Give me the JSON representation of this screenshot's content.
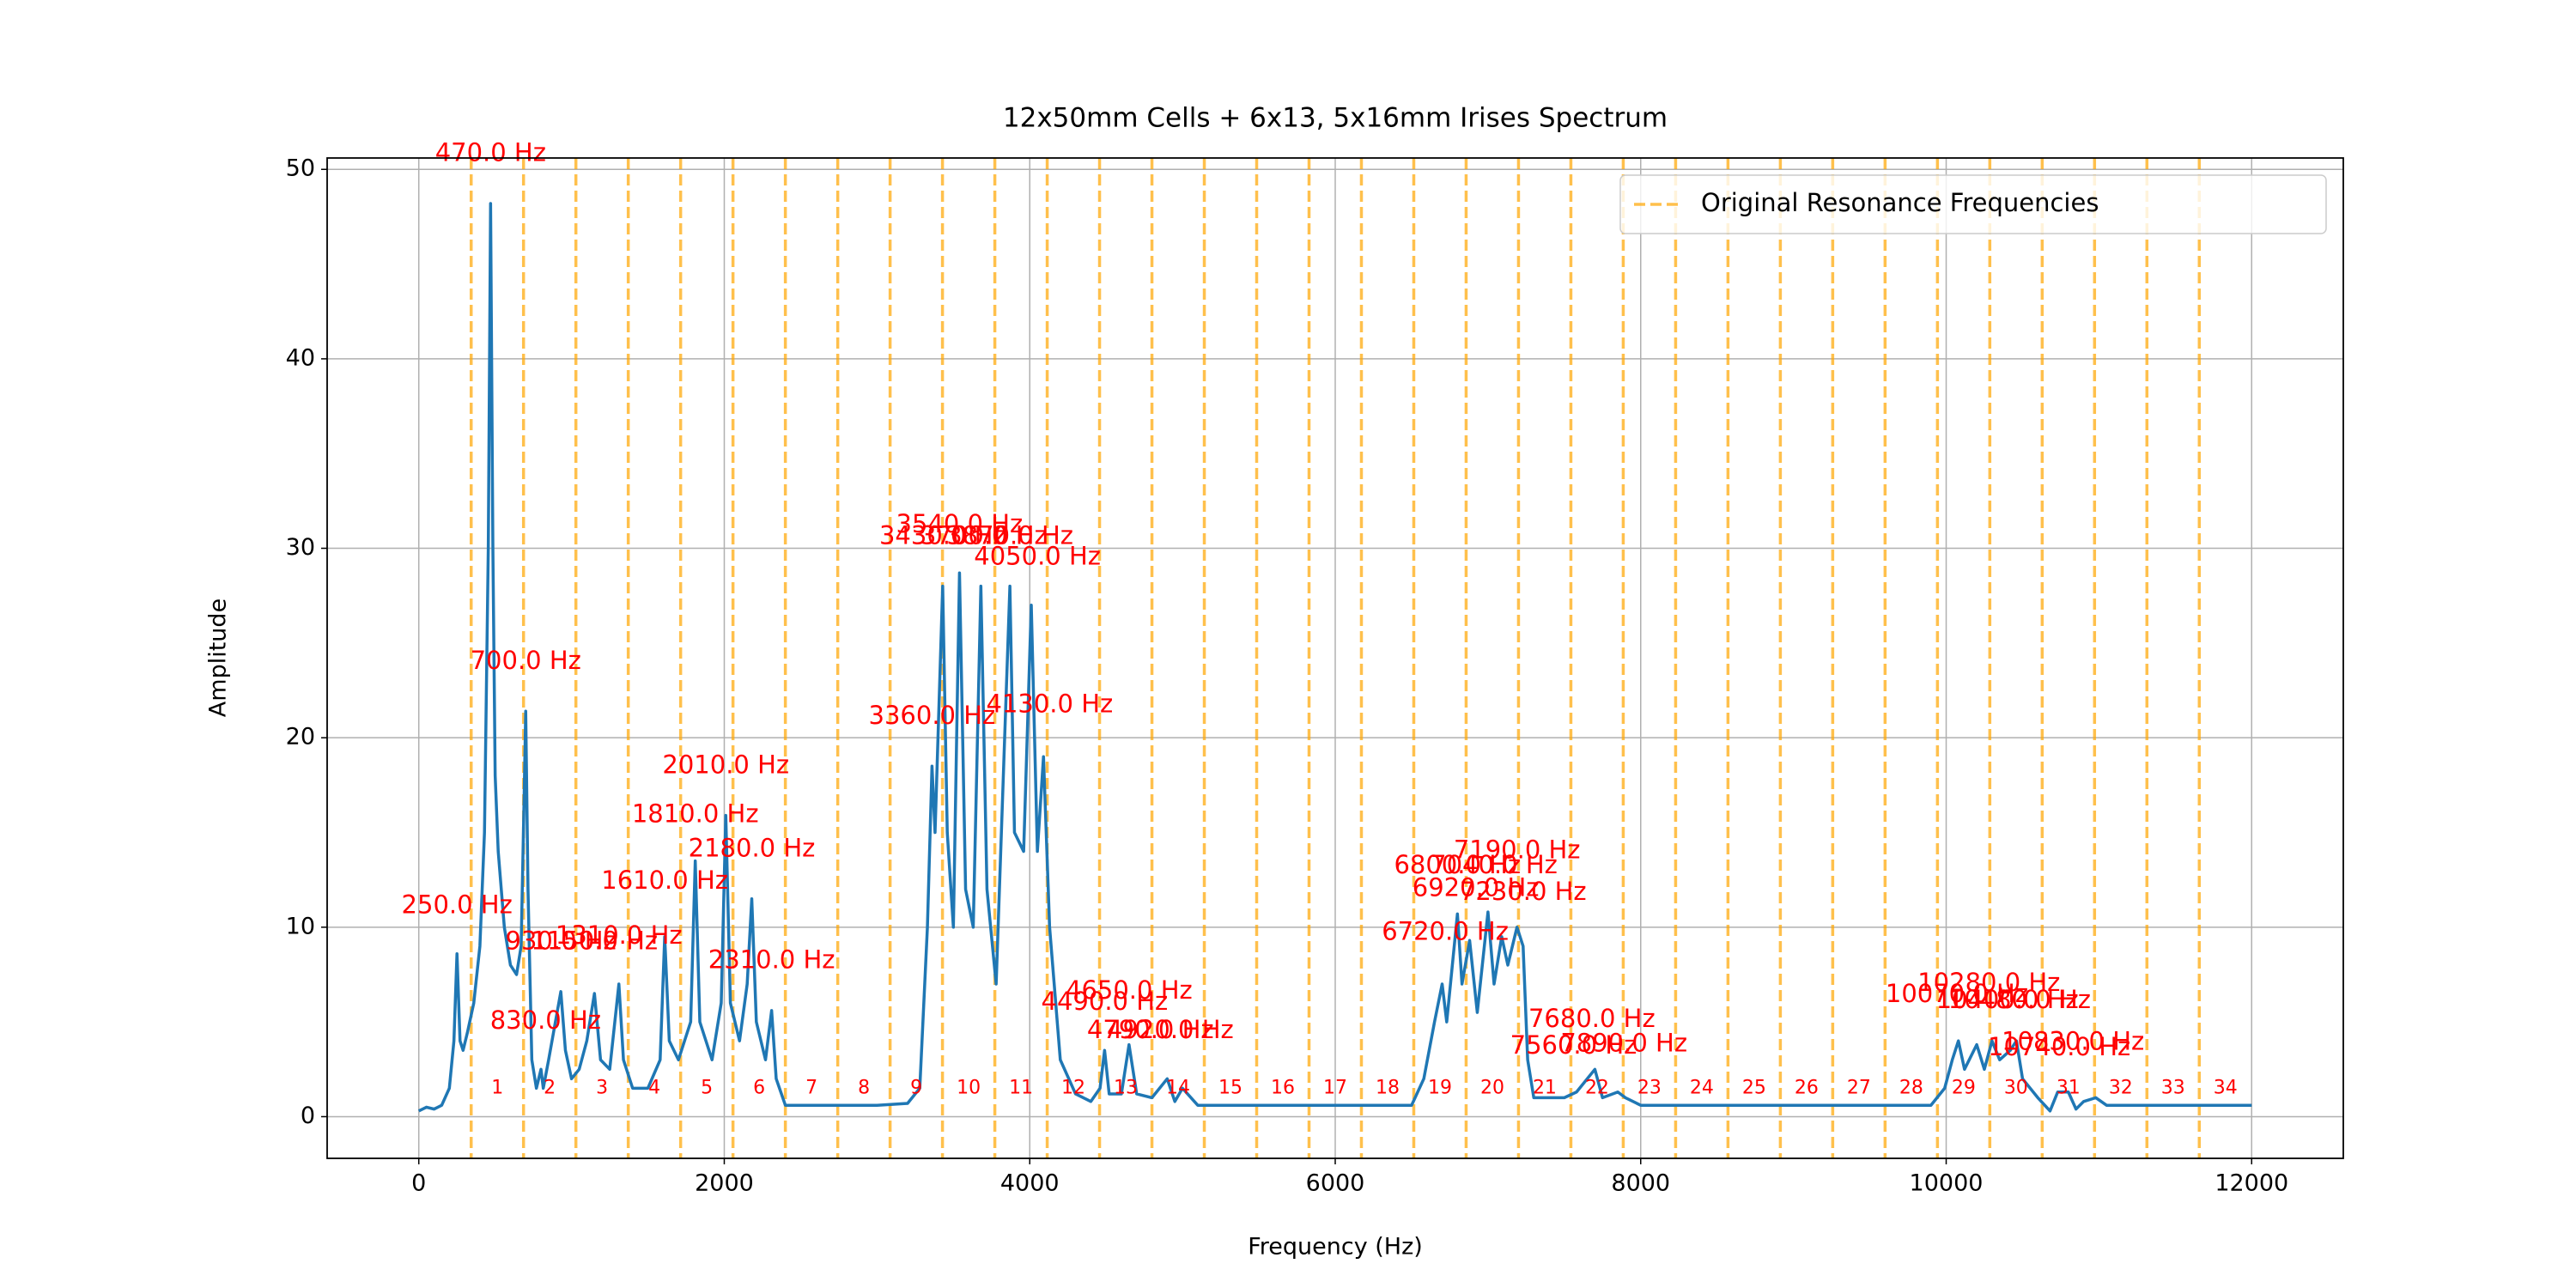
{
  "chart_data": {
    "type": "line",
    "title": "12x50mm Cells + 6x13, 5x16mm Irises Spectrum",
    "x_label": "Frequency (Hz)",
    "y_label": "Amplitude",
    "xlim": [
      -600,
      12600
    ],
    "ylim": [
      -2.2,
      50.6
    ],
    "xticks": [
      0,
      2000,
      4000,
      6000,
      8000,
      10000,
      12000
    ],
    "yticks": [
      0,
      10,
      20,
      30,
      40,
      50
    ],
    "grid": true,
    "legend": "upper right",
    "color": "#1f77b4",
    "x": [
      0,
      50,
      100,
      150,
      200,
      230,
      250,
      270,
      290,
      320,
      360,
      400,
      430,
      455,
      470,
      485,
      500,
      520,
      560,
      600,
      640,
      670,
      690,
      700,
      715,
      740,
      770,
      800,
      815,
      850,
      930,
      960,
      1000,
      1050,
      1100,
      1150,
      1190,
      1250,
      1310,
      1340,
      1400,
      1500,
      1580,
      1610,
      1640,
      1700,
      1780,
      1810,
      1840,
      1920,
      1980,
      2010,
      2040,
      2100,
      2150,
      2180,
      2210,
      2270,
      2310,
      2340,
      2400,
      3000,
      3200,
      3280,
      3330,
      3360,
      3380,
      3430,
      3460,
      3500,
      3540,
      3580,
      3630,
      3680,
      3720,
      3780,
      3870,
      3900,
      3960,
      4010,
      4050,
      4090,
      4130,
      4200,
      4300,
      4400,
      4460,
      4490,
      4520,
      4600,
      4650,
      4700,
      4800,
      4900,
      4950,
      5000,
      5100,
      6500,
      6580,
      6650,
      6700,
      6730,
      6800,
      6830,
      6880,
      6930,
      7000,
      7040,
      7090,
      7130,
      7190,
      7230,
      7260,
      7300,
      7500,
      7580,
      7700,
      7750,
      7850,
      7900,
      8000,
      9900,
      9990,
      10040,
      10080,
      10120,
      10200,
      10250,
      10300,
      10350,
      10420,
      10460,
      10500,
      10600,
      10680,
      10730,
      10800,
      10850,
      10900,
      10980,
      11050,
      12000
    ],
    "values": [
      0.3,
      0.5,
      0.4,
      0.6,
      1.5,
      4,
      8.6,
      4,
      3.5,
      4.5,
      6,
      9,
      15,
      30,
      48.2,
      30,
      18,
      14,
      10,
      8,
      7.5,
      9,
      17,
      21.4,
      12,
      3,
      1.5,
      2.5,
      1.5,
      3,
      6.6,
      3.5,
      2,
      2.5,
      4,
      6.5,
      3,
      2.5,
      7,
      3,
      1.5,
      1.5,
      3,
      9.5,
      4,
      3,
      5,
      13.5,
      5,
      3,
      6,
      15.9,
      6,
      4,
      7,
      11.5,
      5,
      3,
      5.6,
      2,
      0.6,
      0.6,
      0.7,
      1.5,
      10,
      18.5,
      15,
      28,
      15,
      10,
      28.7,
      12,
      10,
      28,
      12,
      7,
      28,
      15,
      14,
      27,
      14,
      19,
      10,
      3,
      1.2,
      0.8,
      1.5,
      3.5,
      1.2,
      1.2,
      3.8,
      1.2,
      1,
      2,
      0.8,
      1.5,
      0.6,
      0.6,
      2,
      5,
      7,
      5,
      10.7,
      7,
      9.3,
      5.5,
      10.8,
      7,
      9.5,
      8,
      10,
      9,
      3,
      1,
      1,
      1.3,
      2.5,
      1,
      1.3,
      1,
      0.6,
      0.6,
      1.5,
      3,
      4,
      2.5,
      3.8,
      2.5,
      4,
      3,
      3.5,
      4,
      2,
      1,
      0.3,
      1.3,
      1.3,
      0.4,
      0.8,
      1,
      0.6,
      0.6
    ],
    "resonance_lines": {
      "name": "Original Resonance Frequencies",
      "color": "#ffa500",
      "values": [
        342.9,
        685.7,
        1028.6,
        1371.4,
        1714.3,
        2057.1,
        2400,
        2742.9,
        3085.7,
        3428.6,
        3771.4,
        4114.3,
        4457.1,
        4800,
        5142.9,
        5485.7,
        5828.6,
        6171.4,
        6514.3,
        6857.1,
        7200,
        7542.9,
        7885.7,
        8228.6,
        8571.4,
        8914.3,
        9257.1,
        9600,
        9942.9,
        10285.7,
        10628.6,
        10971.4,
        11314.3,
        11657.1
      ]
    },
    "annotations": [
      {
        "x": 250,
        "y": 11.1,
        "text": "250.0 Hz"
      },
      {
        "x": 470,
        "y": 50.8,
        "text": "470.0 Hz"
      },
      {
        "x": 700,
        "y": 24.0,
        "text": "700.0 Hz"
      },
      {
        "x": 830,
        "y": 5.0,
        "text": "830.0 Hz"
      },
      {
        "x": 930,
        "y": 9.2,
        "text": "930.0 Hz"
      },
      {
        "x": 1150,
        "y": 9.2,
        "text": "1150.0 Hz"
      },
      {
        "x": 1310,
        "y": 9.5,
        "text": "1310.0 Hz"
      },
      {
        "x": 1610,
        "y": 12.4,
        "text": "1610.0 Hz"
      },
      {
        "x": 1810,
        "y": 15.9,
        "text": "1810.0 Hz"
      },
      {
        "x": 2010,
        "y": 18.5,
        "text": "2010.0 Hz"
      },
      {
        "x": 2180,
        "y": 14.1,
        "text": "2180.0 Hz"
      },
      {
        "x": 2310,
        "y": 8.2,
        "text": "2310.0 Hz"
      },
      {
        "x": 3360,
        "y": 21.1,
        "text": "3360.0 Hz"
      },
      {
        "x": 3430,
        "y": 30.6,
        "text": "3430.0 Hz"
      },
      {
        "x": 3540,
        "y": 31.2,
        "text": "3540.0 Hz"
      },
      {
        "x": 3700,
        "y": 30.6,
        "text": "3700.0 Hz"
      },
      {
        "x": 3870,
        "y": 30.6,
        "text": "3870.0 Hz"
      },
      {
        "x": 4050,
        "y": 29.5,
        "text": "4050.0 Hz"
      },
      {
        "x": 4130,
        "y": 21.7,
        "text": "4130.0 Hz"
      },
      {
        "x": 4490,
        "y": 6.0,
        "text": "4490.0 Hz"
      },
      {
        "x": 4650,
        "y": 6.6,
        "text": "4650.0 Hz"
      },
      {
        "x": 4790,
        "y": 4.5,
        "text": "4790.0 Hz"
      },
      {
        "x": 4920,
        "y": 4.5,
        "text": "4920.0 Hz"
      },
      {
        "x": 6720,
        "y": 9.7,
        "text": "6720.0 Hz"
      },
      {
        "x": 6800,
        "y": 13.2,
        "text": "6800.0 Hz"
      },
      {
        "x": 6920,
        "y": 12.0,
        "text": "6920.0 Hz"
      },
      {
        "x": 7040,
        "y": 13.2,
        "text": "7040.0 Hz"
      },
      {
        "x": 7190,
        "y": 14.0,
        "text": "7190.0 Hz"
      },
      {
        "x": 7230,
        "y": 11.8,
        "text": "7230.0 Hz"
      },
      {
        "x": 7560,
        "y": 3.7,
        "text": "7560.0 Hz"
      },
      {
        "x": 7680,
        "y": 5.1,
        "text": "7680.0 Hz"
      },
      {
        "x": 7890,
        "y": 3.8,
        "text": "7890.0 Hz"
      },
      {
        "x": 10070,
        "y": 6.4,
        "text": "10070.0 Hz"
      },
      {
        "x": 10280,
        "y": 7.0,
        "text": "10280.0 Hz"
      },
      {
        "x": 10400,
        "y": 6.1,
        "text": "10400.0 Hz"
      },
      {
        "x": 10480,
        "y": 6.1,
        "text": "10480.0 Hz"
      },
      {
        "x": 10740,
        "y": 3.6,
        "text": "10740.0 Hz"
      },
      {
        "x": 10830,
        "y": 3.9,
        "text": "10830.0 Hz"
      }
    ],
    "region_labels": [
      {
        "x": 514.3,
        "y": 1.5,
        "text": "1"
      },
      {
        "x": 857.1,
        "y": 1.5,
        "text": "2"
      },
      {
        "x": 1200,
        "y": 1.5,
        "text": "3"
      },
      {
        "x": 1542.9,
        "y": 1.5,
        "text": "4"
      },
      {
        "x": 1885.7,
        "y": 1.5,
        "text": "5"
      },
      {
        "x": 2228.6,
        "y": 1.5,
        "text": "6"
      },
      {
        "x": 2571.4,
        "y": 1.5,
        "text": "7"
      },
      {
        "x": 2914.3,
        "y": 1.5,
        "text": "8"
      },
      {
        "x": 3257.1,
        "y": 1.5,
        "text": "9"
      },
      {
        "x": 3600,
        "y": 1.5,
        "text": "10"
      },
      {
        "x": 3942.9,
        "y": 1.5,
        "text": "11"
      },
      {
        "x": 4285.7,
        "y": 1.5,
        "text": "12"
      },
      {
        "x": 4628.6,
        "y": 1.5,
        "text": "13"
      },
      {
        "x": 4971.4,
        "y": 1.5,
        "text": "14"
      },
      {
        "x": 5314.3,
        "y": 1.5,
        "text": "15"
      },
      {
        "x": 5657.1,
        "y": 1.5,
        "text": "16"
      },
      {
        "x": 6000,
        "y": 1.5,
        "text": "17"
      },
      {
        "x": 6342.9,
        "y": 1.5,
        "text": "18"
      },
      {
        "x": 6685.7,
        "y": 1.5,
        "text": "19"
      },
      {
        "x": 7028.6,
        "y": 1.5,
        "text": "20"
      },
      {
        "x": 7371.4,
        "y": 1.5,
        "text": "21"
      },
      {
        "x": 7714.3,
        "y": 1.5,
        "text": "22"
      },
      {
        "x": 8057.1,
        "y": 1.5,
        "text": "23"
      },
      {
        "x": 8400,
        "y": 1.5,
        "text": "24"
      },
      {
        "x": 8742.9,
        "y": 1.5,
        "text": "25"
      },
      {
        "x": 9085.7,
        "y": 1.5,
        "text": "26"
      },
      {
        "x": 9428.6,
        "y": 1.5,
        "text": "27"
      },
      {
        "x": 9771.4,
        "y": 1.5,
        "text": "28"
      },
      {
        "x": 10114.3,
        "y": 1.5,
        "text": "29"
      },
      {
        "x": 10457.1,
        "y": 1.5,
        "text": "30"
      },
      {
        "x": 10800,
        "y": 1.5,
        "text": "31"
      },
      {
        "x": 11142.9,
        "y": 1.5,
        "text": "32"
      },
      {
        "x": 11485.7,
        "y": 1.5,
        "text": "33"
      },
      {
        "x": 11828.6,
        "y": 1.5,
        "text": "34"
      }
    ]
  }
}
